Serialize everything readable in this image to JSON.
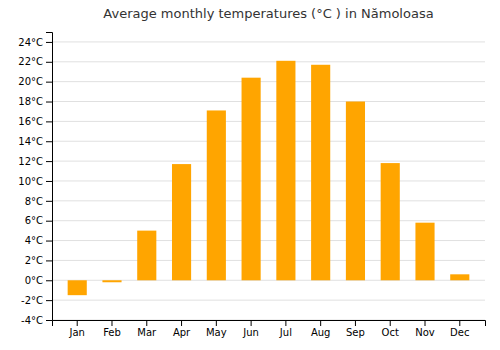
{
  "chart_data": {
    "type": "bar",
    "title": "Average monthly temperatures (°C ) in Nămoloasa",
    "categories": [
      "Jan",
      "Feb",
      "Mar",
      "Apr",
      "May",
      "Jun",
      "Jul",
      "Aug",
      "Sep",
      "Oct",
      "Nov",
      "Dec"
    ],
    "values": [
      -1.5,
      -0.2,
      5.0,
      11.7,
      17.1,
      20.4,
      22.1,
      21.7,
      18.0,
      11.8,
      5.8,
      0.6
    ],
    "color": "#FFA500",
    "ylim": [
      -4,
      25
    ],
    "yticks": [
      {
        "value": -4,
        "label": "-4°C"
      },
      {
        "value": -2,
        "label": "-2°C"
      },
      {
        "value": 0,
        "label": "0°C"
      },
      {
        "value": 2,
        "label": "2°C"
      },
      {
        "value": 4,
        "label": "4°C"
      },
      {
        "value": 6,
        "label": "6°C"
      },
      {
        "value": 8,
        "label": "8°C"
      },
      {
        "value": 10,
        "label": "10°C"
      },
      {
        "value": 12,
        "label": "12°C"
      },
      {
        "value": 14,
        "label": "14°C"
      },
      {
        "value": 16,
        "label": "16°C"
      },
      {
        "value": 18,
        "label": "18°C"
      },
      {
        "value": 20,
        "label": "20°C"
      },
      {
        "value": 22,
        "label": "22°C"
      },
      {
        "value": 24,
        "label": "24°C"
      }
    ],
    "grid": true
  }
}
